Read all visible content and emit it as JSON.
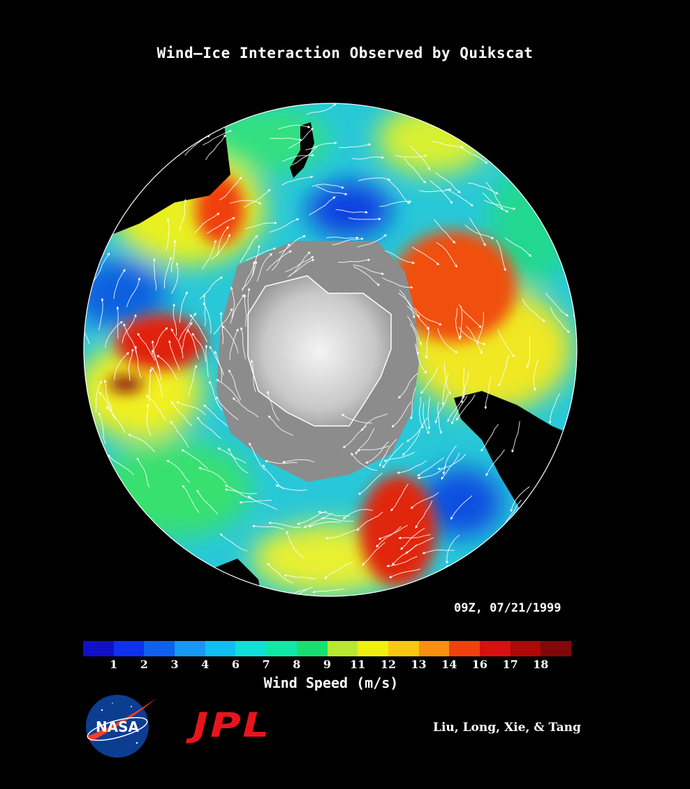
{
  "title": "Wind–Ice Interaction Observed by Quikscat",
  "timestamp": "09Z, 07/21/1999",
  "colorbar": {
    "label": "Wind Speed (m/s)",
    "tick_labels": [
      "1",
      "2",
      "3",
      "4",
      "6",
      "7",
      "8",
      "9",
      "11",
      "12",
      "13",
      "14",
      "16",
      "17",
      "18"
    ],
    "colors": [
      "#1010c8",
      "#1030f0",
      "#1060f0",
      "#1898f0",
      "#10c0f0",
      "#10e0d8",
      "#10e8a8",
      "#18e070",
      "#b8e830",
      "#f0f010",
      "#f8c810",
      "#f89010",
      "#f04010",
      "#d81010",
      "#b00808",
      "#800808"
    ]
  },
  "map": {
    "background_colors": {
      "ocean": "#28c8d8",
      "ice": "#8c8c8c",
      "continent": "#d8d8d8",
      "land": "#000000"
    }
  },
  "logos": {
    "nasa_text": "NASA",
    "jpl_text": "JPL"
  },
  "authors": "Liu, Long, Xie, & Tang"
}
